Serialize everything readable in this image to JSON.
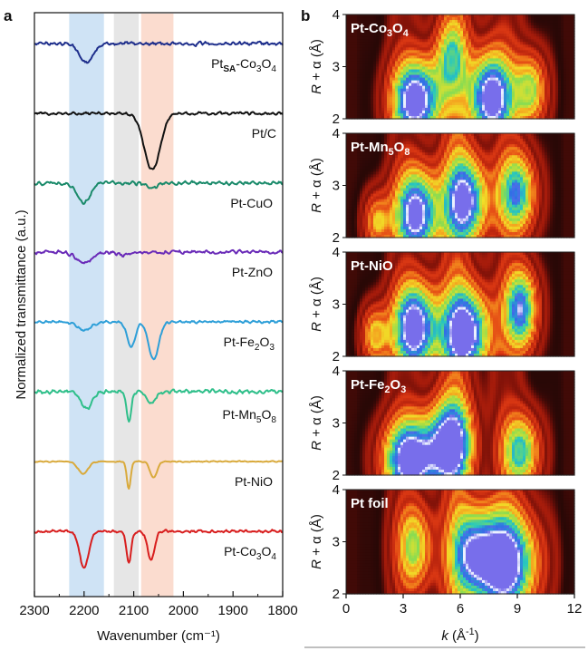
{
  "panel_a_letter": "a",
  "panel_b_letter": "b",
  "colors": {
    "band_blue": "#cfe3f5",
    "band_gray": "#e6e6e6",
    "band_pink": "#fbdccf"
  },
  "chart_data": [
    {
      "type": "line",
      "panel": "a",
      "xlabel": "Wavenumber (cm⁻¹)",
      "ylabel": "Normalized transmittance (a.u.)",
      "xlim": [
        2300,
        1800
      ],
      "xticks": [
        "2300",
        "2200",
        "2100",
        "2000",
        "1900",
        "1800"
      ],
      "shaded_bands": [
        {
          "from": 2230,
          "to": 2160,
          "color": "#cfe3f5"
        },
        {
          "from": 2140,
          "to": 2090,
          "color": "#e6e6e6"
        },
        {
          "from": 2085,
          "to": 2020,
          "color": "#fbdccf"
        }
      ],
      "series": [
        {
          "name": "Pt",
          "sub": "SA",
          "suffix": "-Co",
          "sub2": "3",
          "suffix2": "O",
          "sub3": "4",
          "color": "#1f2f8c",
          "noise": 2.2,
          "peaks": [
            {
              "center": 2195,
              "width": 14,
              "depth": 0.62
            }
          ]
        },
        {
          "name": "Pt/C",
          "color": "#111111",
          "noise": 1.8,
          "peaks": [
            {
              "center": 2063,
              "width": 16,
              "depth": 1.0
            }
          ]
        },
        {
          "name": "Pt-CuO",
          "color": "#1a8a6a",
          "noise": 2.2,
          "peaks": [
            {
              "center": 2200,
              "width": 13,
              "depth": 0.55
            },
            {
              "center": 2065,
              "width": 12,
              "depth": 0.12
            }
          ]
        },
        {
          "name": "Pt-ZnO",
          "color": "#6a2bb8",
          "noise": 2.2,
          "peaks": [
            {
              "center": 2200,
              "width": 16,
              "depth": 0.38
            },
            {
              "center": 2120,
              "width": 10,
              "depth": 0.12
            }
          ]
        },
        {
          "name": "Pt-Fe",
          "sub": "2",
          "suffix": "O",
          "sub2": "3",
          "color": "#2e9fd8",
          "noise": 1.6,
          "peaks": [
            {
              "center": 2200,
              "width": 14,
              "depth": 0.18
            },
            {
              "center": 2105,
              "width": 8,
              "depth": 0.55
            },
            {
              "center": 2060,
              "width": 10,
              "depth": 0.85
            }
          ]
        },
        {
          "name": "Pt-Mn",
          "sub": "5",
          "suffix": "O",
          "sub2": "8",
          "color": "#2fbf8a",
          "noise": 2.4,
          "peaks": [
            {
              "center": 2195,
              "width": 11,
              "depth": 0.45
            },
            {
              "center": 2110,
              "width": 5,
              "depth": 0.75
            },
            {
              "center": 2065,
              "width": 9,
              "depth": 0.32
            }
          ]
        },
        {
          "name": "Pt-NiO",
          "color": "#d9aa3c",
          "noise": 0.7,
          "peaks": [
            {
              "center": 2202,
              "width": 10,
              "depth": 0.45
            },
            {
              "center": 2110,
              "width": 4,
              "depth": 1.0
            },
            {
              "center": 2060,
              "width": 7,
              "depth": 0.6
            }
          ]
        },
        {
          "name": "Pt-Co",
          "sub": "3",
          "suffix": "O",
          "sub2": "4",
          "color": "#d81e1e",
          "noise": 1.8,
          "peaks": [
            {
              "center": 2200,
              "width": 9,
              "depth": 0.85
            },
            {
              "center": 2110,
              "width": 5,
              "depth": 0.7
            },
            {
              "center": 2065,
              "width": 7,
              "depth": 0.65
            }
          ]
        }
      ]
    },
    {
      "type": "heatmap",
      "panel": "b",
      "xlabel_k": "k",
      "xlabel_unit": "(Å",
      "xlabel_exp": "-1",
      "xlabel_close": ")",
      "ylabel_R": "R",
      "ylabel_rest": " + α (Å)",
      "xlim": [
        0,
        12
      ],
      "ylim": [
        2,
        4
      ],
      "xticks": [
        "0",
        "3",
        "6",
        "9",
        "12"
      ],
      "yticks": [
        "2",
        "3",
        "4"
      ],
      "maps": [
        {
          "label": "Pt-Co",
          "sub": "3",
          "suffix": "O",
          "sub2": "4",
          "blobs": [
            {
              "k": 3.7,
              "r": 2.35,
              "a": 1.0,
              "sk": 0.9,
              "sr": 0.55
            },
            {
              "k": 7.6,
              "r": 2.4,
              "a": 1.0,
              "sk": 0.8,
              "sr": 0.6
            },
            {
              "k": 9.7,
              "r": 2.55,
              "a": 0.55,
              "sk": 0.6,
              "sr": 0.5
            },
            {
              "k": 5.5,
              "r": 3.2,
              "a": 0.45,
              "sk": 0.6,
              "sr": 0.5
            }
          ]
        },
        {
          "label": "Pt-Mn",
          "sub": "5",
          "suffix": "O",
          "sub2": "8",
          "blobs": [
            {
              "k": 3.7,
              "r": 2.45,
              "a": 0.95,
              "sk": 0.8,
              "sr": 0.6
            },
            {
              "k": 6.3,
              "r": 2.7,
              "a": 0.85,
              "sk": 0.8,
              "sr": 0.6
            },
            {
              "k": 9.0,
              "r": 2.85,
              "a": 0.7,
              "sk": 0.7,
              "sr": 0.55
            },
            {
              "k": 1.6,
              "r": 2.3,
              "a": 0.4,
              "sk": 0.5,
              "sr": 0.4
            }
          ]
        },
        {
          "label": "Pt-NiO",
          "blobs": [
            {
              "k": 3.6,
              "r": 2.55,
              "a": 1.0,
              "sk": 0.8,
              "sr": 0.6
            },
            {
              "k": 6.3,
              "r": 2.45,
              "a": 0.95,
              "sk": 0.9,
              "sr": 0.6
            },
            {
              "k": 9.2,
              "r": 2.9,
              "a": 0.8,
              "sk": 0.6,
              "sr": 0.55
            },
            {
              "k": 1.5,
              "r": 2.4,
              "a": 0.45,
              "sk": 0.5,
              "sr": 0.4
            }
          ]
        },
        {
          "label": "Pt-Fe",
          "sub": "2",
          "suffix": "O",
          "sub2": "3",
          "blobs": [
            {
              "k": 3.4,
              "r": 2.3,
              "a": 1.0,
              "sk": 1.0,
              "sr": 0.55
            },
            {
              "k": 5.5,
              "r": 2.6,
              "a": 0.9,
              "sk": 0.8,
              "sr": 0.6
            },
            {
              "k": 9.2,
              "r": 2.45,
              "a": 0.65,
              "sk": 0.7,
              "sr": 0.5
            }
          ]
        },
        {
          "label": "Pt foil",
          "blobs": [
            {
              "k": 8.3,
              "r": 2.6,
              "a": 1.0,
              "sk": 1.2,
              "sr": 0.7
            },
            {
              "k": 6.6,
              "r": 2.8,
              "a": 0.55,
              "sk": 0.8,
              "sr": 0.6
            },
            {
              "k": 3.6,
              "r": 2.9,
              "a": 0.5,
              "sk": 0.7,
              "sr": 0.6
            }
          ]
        }
      ]
    }
  ]
}
